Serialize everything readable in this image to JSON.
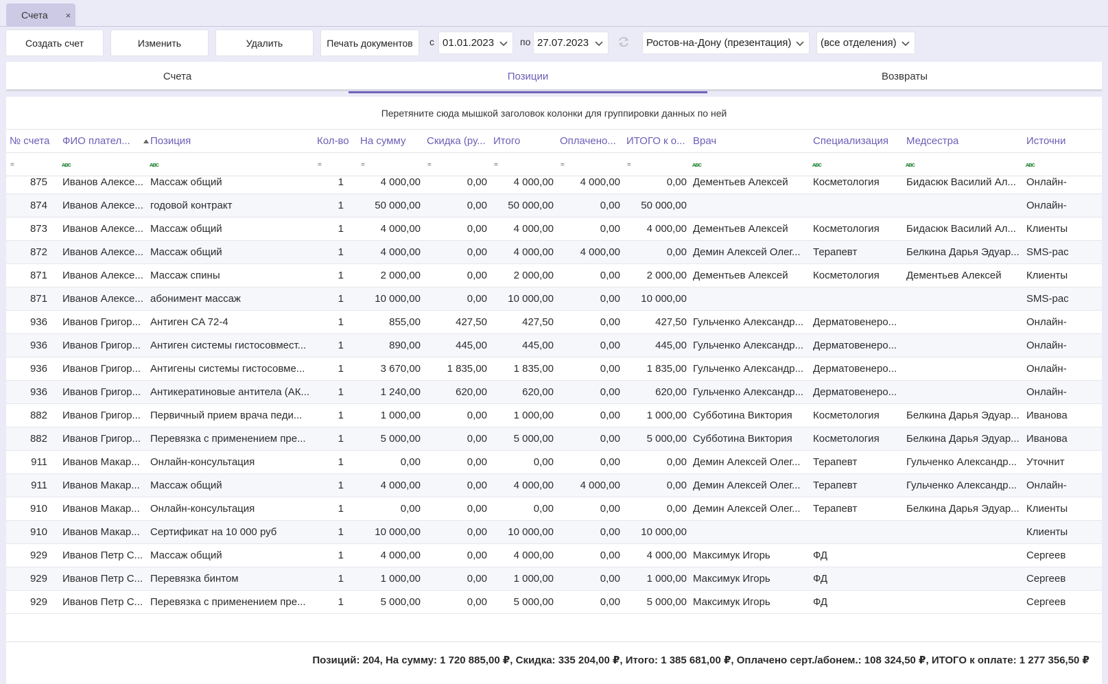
{
  "doc_tab": {
    "label": "Счета",
    "close": "×"
  },
  "toolbar": {
    "create": "Создать счет",
    "edit": "Изменить",
    "delete": "Удалить",
    "print": "Печать документов",
    "from_label": "с",
    "from_date": "01.01.2023",
    "to_label": "по",
    "to_date": "27.07.2023",
    "clinic": "Ростов-на-Дону (презентация)",
    "department": "(все отделения)"
  },
  "tabs": [
    "Счета",
    "Позиции",
    "Возвраты"
  ],
  "active_tab": "Позиции",
  "group_hint": "Перетяните сюда мышкой заголовок колонки для группировки данных по ней",
  "columns": [
    "№ счета",
    "ФИО плател...",
    "Позиция",
    "Кол-во",
    "На сумму",
    "Скидка (ру...",
    "Итого",
    "Оплачено...",
    "ИТОГО к о...",
    "Врач",
    "Специализация",
    "Медсестра",
    "Источни"
  ],
  "filter_icons": {
    "eq": "=",
    "text": "ᴀʙc"
  },
  "rows": [
    [
      "875",
      "Иванов Алексе...",
      "Массаж общий",
      "1",
      "4 000,00",
      "0,00",
      "4 000,00",
      "4 000,00",
      "0,00",
      "Дементьев Алексей",
      "Косметология",
      "Бидасюк Василий Ал...",
      "Онлайн-"
    ],
    [
      "874",
      "Иванов Алексе...",
      "годовой контракт",
      "1",
      "50 000,00",
      "0,00",
      "50 000,00",
      "0,00",
      "50 000,00",
      "",
      "",
      "",
      "Онлайн-"
    ],
    [
      "873",
      "Иванов Алексе...",
      "Массаж общий",
      "1",
      "4 000,00",
      "0,00",
      "4 000,00",
      "0,00",
      "4 000,00",
      "Дементьев Алексей",
      "Косметология",
      "Бидасюк Василий Ал...",
      "Клиенты"
    ],
    [
      "872",
      "Иванов Алексе...",
      "Массаж общий",
      "1",
      "4 000,00",
      "0,00",
      "4 000,00",
      "4 000,00",
      "0,00",
      "Демин Алексей Олег...",
      "Терапевт",
      "Белкина Дарья Эдуар...",
      "SMS-рас"
    ],
    [
      "871",
      "Иванов Алексе...",
      "Массаж спины",
      "1",
      "2 000,00",
      "0,00",
      "2 000,00",
      "0,00",
      "2 000,00",
      "Дементьев Алексей",
      "Косметология",
      "Дементьев Алексей",
      "Клиенты"
    ],
    [
      "871",
      "Иванов Алексе...",
      "абонимент массаж",
      "1",
      "10 000,00",
      "0,00",
      "10 000,00",
      "0,00",
      "10 000,00",
      "",
      "",
      "",
      "SMS-рас"
    ],
    [
      "936",
      "Иванов Григор...",
      "Антиген CA 72-4",
      "1",
      "855,00",
      "427,50",
      "427,50",
      "0,00",
      "427,50",
      "Гульченко Александр...",
      "Дерматовенеро...",
      "",
      "Онлайн-"
    ],
    [
      "936",
      "Иванов Григор...",
      "Антиген системы гистосовмест...",
      "1",
      "890,00",
      "445,00",
      "445,00",
      "0,00",
      "445,00",
      "Гульченко Александр...",
      "Дерматовенеро...",
      "",
      "Онлайн-"
    ],
    [
      "936",
      "Иванов Григор...",
      "Антигены системы гистосовме...",
      "1",
      "3 670,00",
      "1 835,00",
      "1 835,00",
      "0,00",
      "1 835,00",
      "Гульченко Александр...",
      "Дерматовенеро...",
      "",
      "Онлайн-"
    ],
    [
      "936",
      "Иванов Григор...",
      "Антикератиновые антитела (АК...",
      "1",
      "1 240,00",
      "620,00",
      "620,00",
      "0,00",
      "620,00",
      "Гульченко Александр...",
      "Дерматовенеро...",
      "",
      "Онлайн-"
    ],
    [
      "882",
      "Иванов Григор...",
      "Первичный прием врача педи...",
      "1",
      "1 000,00",
      "0,00",
      "1 000,00",
      "0,00",
      "1 000,00",
      "Субботина Виктория",
      "Косметология",
      "Белкина Дарья Эдуар...",
      "Иванова"
    ],
    [
      "882",
      "Иванов Григор...",
      "Перевязка с применением пре...",
      "1",
      "5 000,00",
      "0,00",
      "5 000,00",
      "0,00",
      "5 000,00",
      "Субботина Виктория",
      "Косметология",
      "Белкина Дарья Эдуар...",
      "Иванова"
    ],
    [
      "911",
      "Иванов Макар...",
      "Онлайн-консультация",
      "1",
      "0,00",
      "0,00",
      "0,00",
      "0,00",
      "0,00",
      "Демин Алексей Олег...",
      "Терапевт",
      "Гульченко Александр...",
      "Уточнит"
    ],
    [
      "911",
      "Иванов Макар...",
      "Массаж общий",
      "1",
      "4 000,00",
      "0,00",
      "4 000,00",
      "4 000,00",
      "0,00",
      "Демин Алексей Олег...",
      "Терапевт",
      "Гульченко Александр...",
      "Онлайн-"
    ],
    [
      "910",
      "Иванов Макар...",
      "Онлайн-консультация",
      "1",
      "0,00",
      "0,00",
      "0,00",
      "0,00",
      "0,00",
      "Демин Алексей Олег...",
      "Терапевт",
      "Белкина Дарья Эдуар...",
      "Клиенты"
    ],
    [
      "910",
      "Иванов Макар...",
      "Сертификат на 10 000 руб",
      "1",
      "10 000,00",
      "0,00",
      "10 000,00",
      "0,00",
      "10 000,00",
      "",
      "",
      "",
      "Клиенты"
    ],
    [
      "929",
      "Иванов Петр С...",
      "Массаж общий",
      "1",
      "4 000,00",
      "0,00",
      "4 000,00",
      "0,00",
      "4 000,00",
      "Максимук Игорь",
      "ФД",
      "",
      "Сергеев"
    ],
    [
      "929",
      "Иванов Петр С...",
      "Перевязка бинтом",
      "1",
      "1 000,00",
      "0,00",
      "1 000,00",
      "0,00",
      "1 000,00",
      "Максимук Игорь",
      "ФД",
      "",
      "Сергеев"
    ],
    [
      "929",
      "Иванов Петр С...",
      "Перевязка с применением пре...",
      "1",
      "5 000,00",
      "0,00",
      "5 000,00",
      "0,00",
      "5 000,00",
      "Максимук Игорь",
      "ФД",
      "",
      "Сергеев"
    ]
  ],
  "summary": "Позиций: 204, На сумму: 1 720 885,00 ₽, Скидка: 335 204,00 ₽, Итого: 1 385 681,00 ₽, Оплачено серт./абонем.: 108 324,50 ₽, ИТОГО к оплате: 1 277 356,50 ₽",
  "colors": {
    "accent": "#7063be",
    "header_text": "#6b5eb5",
    "page_bg": "#ebeaf7"
  }
}
